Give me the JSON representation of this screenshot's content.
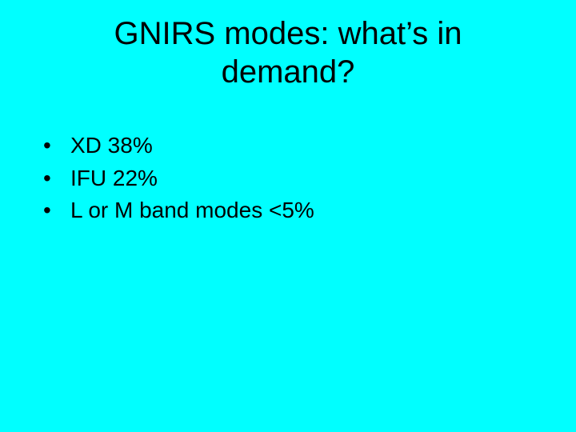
{
  "slide": {
    "background_color": "#00ffff",
    "text_color": "#000000",
    "font_family": "Arial",
    "title": {
      "line1": "GNIRS modes: what’s in",
      "line2": "demand?",
      "fontsize": 40,
      "align": "center"
    },
    "bullets": {
      "fontsize": 28,
      "items": [
        "XD 38%",
        "IFU 22%",
        "L or M band modes <5%"
      ]
    }
  }
}
